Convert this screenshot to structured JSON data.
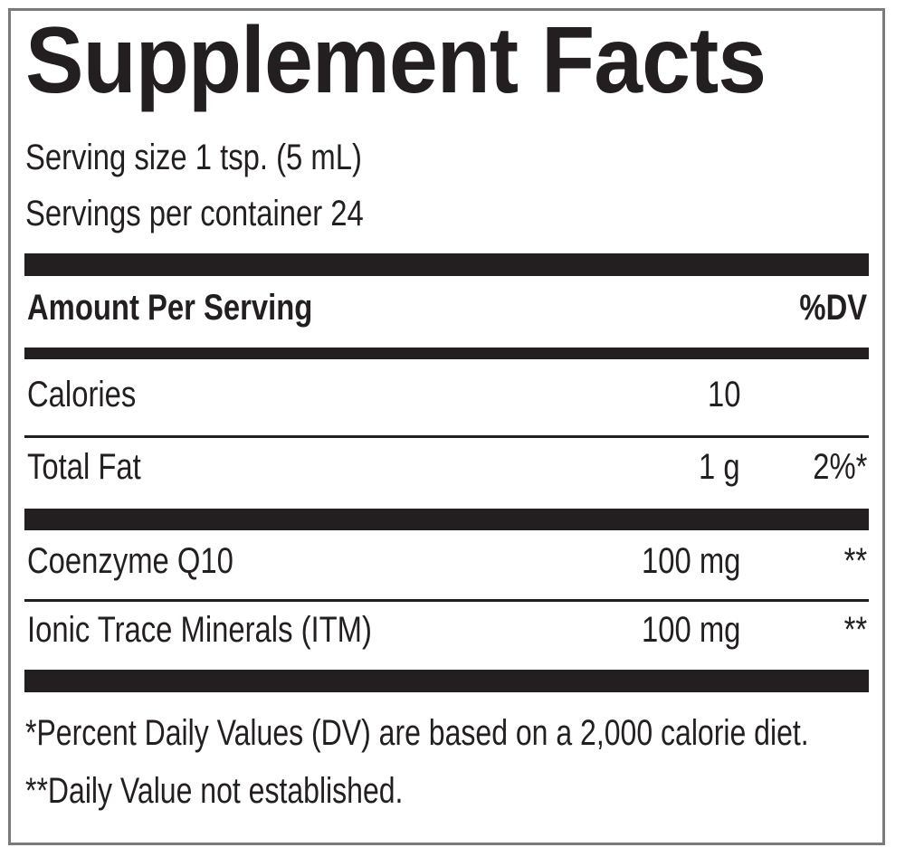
{
  "title": "Supplement Facts",
  "serving_size": "Serving size 1 tsp. (5 mL)",
  "servings_per_container": "Servings per container 24",
  "header": {
    "amount_label": "Amount Per Serving",
    "dv_label": "%DV"
  },
  "rows": [
    {
      "name": "Calories",
      "amount": "10",
      "dv": ""
    },
    {
      "name": "Total Fat",
      "amount": "1 g",
      "dv": "2%*"
    },
    {
      "name": "Coenzyme Q10",
      "amount": "100 mg",
      "dv": "**"
    },
    {
      "name": "Ionic Trace Minerals (ITM)",
      "amount": "100 mg",
      "dv": "**"
    }
  ],
  "footnotes": [
    "*Percent Daily Values (DV) are based on a 2,000 calorie diet.",
    "**Daily Value not established."
  ]
}
